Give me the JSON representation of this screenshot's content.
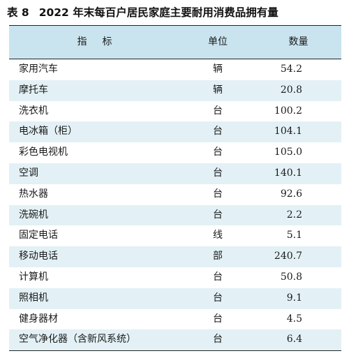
{
  "table_number": "表 8",
  "title": "2022 年末每百户居民家庭主要耐用消费品拥有量",
  "headers": {
    "indicator": "指标",
    "unit": "单位",
    "quantity": "数量"
  },
  "rows": [
    {
      "name": "家用汽车",
      "unit": "辆",
      "value": "54.2"
    },
    {
      "name": "摩托车",
      "unit": "辆",
      "value": "20.8"
    },
    {
      "name": "洗衣机",
      "unit": "台",
      "value": "100.2"
    },
    {
      "name": "电冰箱（柜）",
      "unit": "台",
      "value": "104.1"
    },
    {
      "name": "彩色电视机",
      "unit": "台",
      "value": "105.0"
    },
    {
      "name": "空调",
      "unit": "台",
      "value": "140.1"
    },
    {
      "name": "热水器",
      "unit": "台",
      "value": "92.6"
    },
    {
      "name": "洗碗机",
      "unit": "台",
      "value": "2.2"
    },
    {
      "name": "固定电话",
      "unit": "线",
      "value": "5.1"
    },
    {
      "name": "移动电话",
      "unit": "部",
      "value": "240.7"
    },
    {
      "name": "计算机",
      "unit": "台",
      "value": "50.8"
    },
    {
      "name": "照相机",
      "unit": "台",
      "value": "9.1"
    },
    {
      "name": "健身器材",
      "unit": "台",
      "value": "4.5"
    },
    {
      "name": "空气净化器（含新风系统）",
      "unit": "台",
      "value": "6.4"
    }
  ]
}
